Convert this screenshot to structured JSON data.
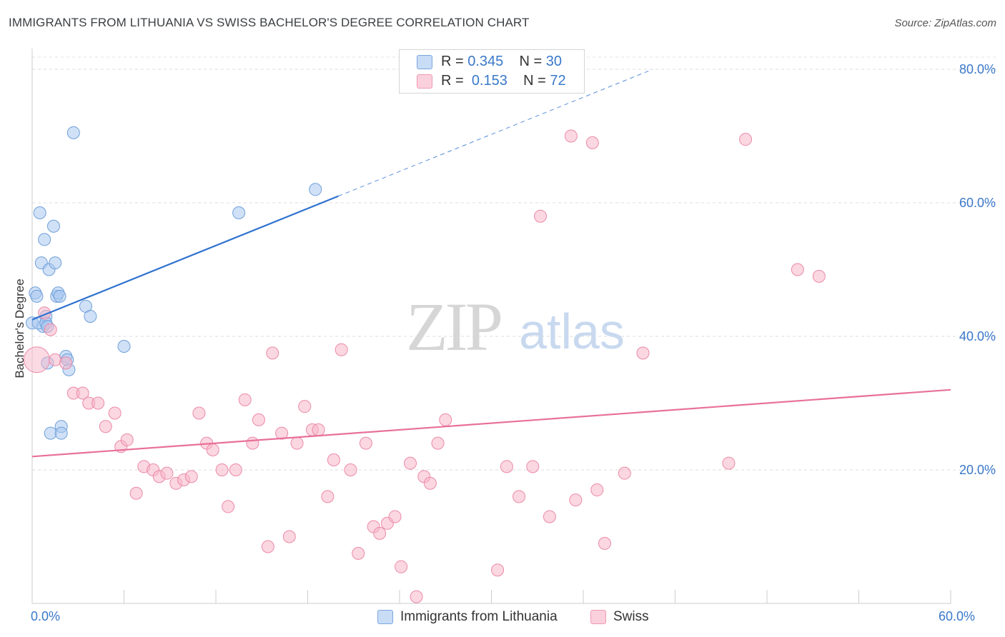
{
  "title": "IMMIGRANTS FROM LITHUANIA VS SWISS BACHELOR'S DEGREE CORRELATION CHART",
  "source": "Source: ZipAtlas.com",
  "watermark": {
    "zip": "ZIP",
    "atlas": "atlas"
  },
  "legend_top": [
    {
      "r_label": "R =",
      "r_value": "0.345",
      "n_label": "N =",
      "n_value": "30",
      "color": "#a9c8f0"
    },
    {
      "r_label": "R =",
      "r_value": "0.153",
      "n_label": "N =",
      "n_value": "72",
      "color": "#f7b6c9"
    }
  ],
  "chart_data": {
    "type": "scatter",
    "title": "IMMIGRANTS FROM LITHUANIA VS SWISS BACHELOR'S DEGREE CORRELATION CHART",
    "xlabel": "",
    "ylabel": "Bachelor's Degree",
    "xlim": [
      0,
      60
    ],
    "ylim": [
      0,
      80
    ],
    "x_tick_labels": [
      {
        "value": 0,
        "label": "0.0%"
      },
      {
        "value": 60,
        "label": "60.0%"
      }
    ],
    "y_tick_labels": [
      {
        "value": 20,
        "label": "20.0%"
      },
      {
        "value": 40,
        "label": "40.0%"
      },
      {
        "value": 60,
        "label": "60.0%"
      },
      {
        "value": 80,
        "label": "80.0%"
      }
    ],
    "grid": "horizontal dashed",
    "series": [
      {
        "name": "Immigrants from Lithuania",
        "color": "#a9c8f0",
        "stroke": "#6f9fd8",
        "trend_color": "#2f72cf",
        "trend": {
          "x0": 0,
          "y0": 42.5,
          "x1": 20,
          "y1": 61,
          "dashed_to_x": 40.5
        },
        "points": [
          [
            0.0,
            42.0
          ],
          [
            0.2,
            46.5
          ],
          [
            0.3,
            46.0
          ],
          [
            0.5,
            58.5
          ],
          [
            0.6,
            51.0
          ],
          [
            0.7,
            41.5
          ],
          [
            0.8,
            54.5
          ],
          [
            0.9,
            43.0
          ],
          [
            1.0,
            36.0
          ],
          [
            1.1,
            50.0
          ],
          [
            1.2,
            25.5
          ],
          [
            1.4,
            56.5
          ],
          [
            1.5,
            51.0
          ],
          [
            1.6,
            46.0
          ],
          [
            1.7,
            46.5
          ],
          [
            1.8,
            46.0
          ],
          [
            1.9,
            26.5
          ],
          [
            1.9,
            25.5
          ],
          [
            2.2,
            37.0
          ],
          [
            2.3,
            36.5
          ],
          [
            2.4,
            35.0
          ],
          [
            2.7,
            70.5
          ],
          [
            3.5,
            44.5
          ],
          [
            3.8,
            43.0
          ],
          [
            6.0,
            38.5
          ],
          [
            13.5,
            58.5
          ],
          [
            18.5,
            62.0
          ],
          [
            0.4,
            42.0
          ],
          [
            0.9,
            42.0
          ],
          [
            1.0,
            41.5
          ]
        ]
      },
      {
        "name": "Swiss",
        "color": "#f7b6c9",
        "stroke": "#eb8aa8",
        "trend_color": "#e8709a",
        "trend": {
          "x0": 0,
          "y0": 22.0,
          "x1": 60,
          "y1": 32.0
        },
        "points": [
          [
            0.3,
            36.5
          ],
          [
            0.8,
            43.5
          ],
          [
            1.2,
            41.0
          ],
          [
            1.5,
            36.5
          ],
          [
            2.2,
            36.0
          ],
          [
            2.7,
            31.5
          ],
          [
            3.3,
            31.5
          ],
          [
            3.7,
            30.0
          ],
          [
            4.3,
            30.0
          ],
          [
            4.8,
            26.5
          ],
          [
            5.4,
            28.5
          ],
          [
            5.8,
            23.5
          ],
          [
            6.2,
            24.5
          ],
          [
            6.8,
            16.5
          ],
          [
            7.3,
            20.5
          ],
          [
            7.9,
            20.0
          ],
          [
            8.3,
            19.0
          ],
          [
            8.8,
            19.5
          ],
          [
            9.4,
            18.0
          ],
          [
            9.9,
            18.5
          ],
          [
            10.4,
            19.0
          ],
          [
            10.9,
            28.5
          ],
          [
            11.4,
            24.0
          ],
          [
            11.8,
            23.0
          ],
          [
            12.4,
            20.0
          ],
          [
            12.8,
            14.5
          ],
          [
            13.3,
            20.0
          ],
          [
            13.9,
            30.5
          ],
          [
            14.4,
            24.0
          ],
          [
            14.8,
            27.5
          ],
          [
            15.4,
            8.5
          ],
          [
            15.7,
            37.5
          ],
          [
            16.3,
            25.5
          ],
          [
            16.8,
            10.0
          ],
          [
            17.3,
            24.0
          ],
          [
            17.8,
            29.5
          ],
          [
            18.3,
            26.0
          ],
          [
            18.7,
            26.0
          ],
          [
            19.3,
            16.0
          ],
          [
            19.7,
            21.5
          ],
          [
            20.2,
            38.0
          ],
          [
            20.8,
            20.0
          ],
          [
            21.3,
            7.5
          ],
          [
            21.8,
            24.0
          ],
          [
            22.3,
            11.5
          ],
          [
            22.7,
            10.5
          ],
          [
            23.2,
            12.0
          ],
          [
            23.7,
            13.0
          ],
          [
            24.1,
            5.5
          ],
          [
            24.7,
            21.0
          ],
          [
            25.1,
            1.0
          ],
          [
            25.6,
            19.0
          ],
          [
            26.0,
            18.0
          ],
          [
            26.5,
            24.0
          ],
          [
            27.0,
            27.5
          ],
          [
            30.4,
            5.0
          ],
          [
            31.0,
            20.5
          ],
          [
            31.8,
            16.0
          ],
          [
            32.7,
            20.5
          ],
          [
            33.2,
            58.0
          ],
          [
            33.8,
            13.0
          ],
          [
            35.2,
            70.0
          ],
          [
            35.5,
            15.5
          ],
          [
            36.6,
            69.0
          ],
          [
            36.9,
            17.0
          ],
          [
            37.4,
            9.0
          ],
          [
            38.7,
            19.5
          ],
          [
            39.9,
            37.5
          ],
          [
            45.5,
            21.0
          ],
          [
            46.6,
            69.5
          ],
          [
            50.0,
            50.0
          ],
          [
            51.4,
            49.0
          ]
        ]
      }
    ]
  }
}
